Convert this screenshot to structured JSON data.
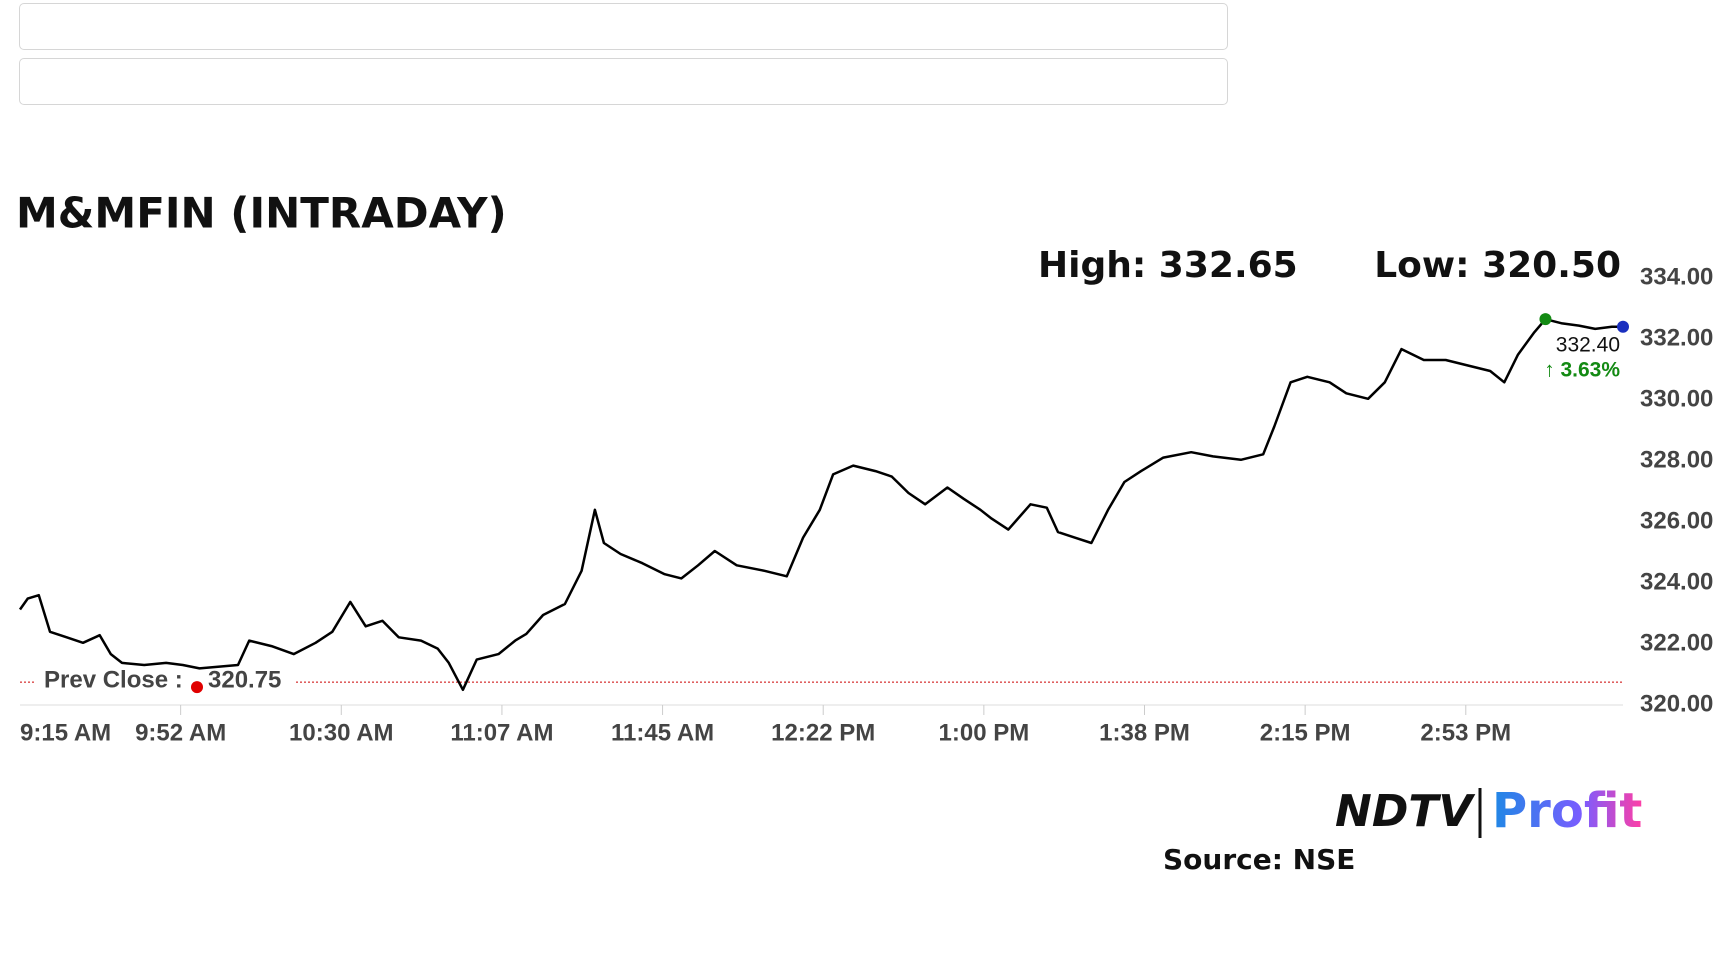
{
  "chart_data": {
    "type": "line",
    "title": "M&MFIN (INTRADAY)",
    "high_label": "High: 332.65",
    "low_label": "Low: 320.50",
    "last_label": "332.40",
    "change_label": "↑ 3.63%",
    "prev_close_label": "Prev Close :",
    "prev_close": 320.75,
    "source": "Source: NSE",
    "logo": [
      "NDTV",
      "Profit"
    ],
    "color": "#000000",
    "x": [
      555,
      556.8,
      559.4,
      562,
      565.9,
      569.7,
      573.6,
      576.2,
      578.8,
      584,
      589.1,
      593,
      596.9,
      605.9,
      608.5,
      613.7,
      618.9,
      624,
      627.9,
      632.1,
      635.7,
      639.6,
      643.4,
      648.6,
      652.5,
      655.1,
      658.4,
      661.6,
      666.7,
      670.6,
      673.2,
      677.1,
      682.2,
      686.1,
      689.2,
      691.3,
      695.2,
      700.3,
      705.5,
      709.4,
      713.3,
      717.2,
      722.3,
      728.8,
      734,
      737.8,
      741.7,
      744.8,
      749.5,
      754.7,
      758.5,
      762.4,
      766.3,
      771.5,
      775.3,
      779.2,
      781.8,
      785.7,
      790.9,
      794.7,
      797.3,
      801.2,
      805.1,
      809,
      812.8,
      816.7,
      821.9,
      828.4,
      833.5,
      840,
      845.2,
      847.8,
      851.6,
      855.5,
      860.7,
      864.6,
      869.7,
      873.6,
      877.5,
      882.7,
      887.8,
      893,
      898.2,
      901.5,
      904.7,
      908.5,
      911.1,
      915,
      918.9,
      922.7,
      926.6,
      929.2
    ],
    "values": [
      323.13,
      323.49,
      323.6,
      322.4,
      322.22,
      322.04,
      322.29,
      321.67,
      321.38,
      321.31,
      321.38,
      321.31,
      321.2,
      321.31,
      322.11,
      321.93,
      321.67,
      322.04,
      322.4,
      323.38,
      322.58,
      322.76,
      322.22,
      322.11,
      321.85,
      321.38,
      320.5,
      321.49,
      321.67,
      322.11,
      322.33,
      322.95,
      323.31,
      324.4,
      326.4,
      325.31,
      324.95,
      324.65,
      324.29,
      324.15,
      324.58,
      325.05,
      324.58,
      324.4,
      324.22,
      325.49,
      326.4,
      327.56,
      327.85,
      327.67,
      327.49,
      326.95,
      326.58,
      327.13,
      326.76,
      326.4,
      326.11,
      325.75,
      326.58,
      326.47,
      325.67,
      325.49,
      325.31,
      326.4,
      327.31,
      327.67,
      328.11,
      328.29,
      328.15,
      328.04,
      328.22,
      329.13,
      330.58,
      330.76,
      330.58,
      330.22,
      330.04,
      330.58,
      331.67,
      331.31,
      331.31,
      331.13,
      330.95,
      330.58,
      331.49,
      332.22,
      332.65,
      332.51,
      332.44,
      332.33,
      332.4,
      332.4
    ],
    "xlim": [
      555,
      929.2
    ],
    "xticks": [
      {
        "value": 555,
        "label": "9:15 AM"
      },
      {
        "value": 592.5,
        "label": "9:52 AM"
      },
      {
        "value": 630,
        "label": "10:30 AM"
      },
      {
        "value": 667.5,
        "label": "11:07 AM"
      },
      {
        "value": 705,
        "label": "11:45 AM"
      },
      {
        "value": 742.5,
        "label": "12:22 PM"
      },
      {
        "value": 780,
        "label": "1:00 PM"
      },
      {
        "value": 817.5,
        "label": "1:38 PM"
      },
      {
        "value": 855,
        "label": "2:15 PM"
      },
      {
        "value": 892.5,
        "label": "2:53 PM"
      }
    ],
    "ylim": [
      320,
      334
    ],
    "yticks": [
      {
        "value": 320,
        "label": "320.00"
      },
      {
        "value": 322,
        "label": "322.00"
      },
      {
        "value": 324,
        "label": "324.00"
      },
      {
        "value": 326,
        "label": "326.00"
      },
      {
        "value": 328,
        "label": "328.00"
      },
      {
        "value": 330,
        "label": "330.00"
      },
      {
        "value": 332,
        "label": "332.00"
      },
      {
        "value": 334,
        "label": "334.00"
      }
    ],
    "grid": false
  }
}
